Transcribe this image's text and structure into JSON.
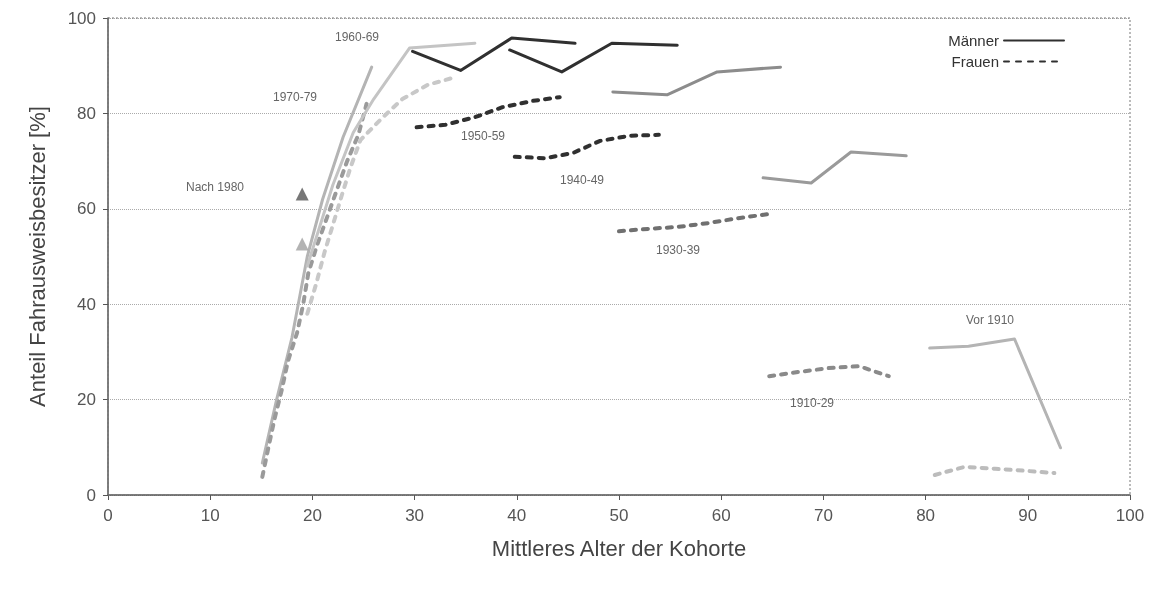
{
  "chart_data": {
    "type": "line",
    "xlabel": "Mittleres Alter der Kohorte",
    "ylabel": "Anteil Fahrausweisbesitzer [%]",
    "xlim": [
      0,
      100
    ],
    "xticks": [
      0,
      10,
      20,
      30,
      40,
      50,
      60,
      70,
      80,
      90,
      100
    ],
    "ylim": [
      0,
      100
    ],
    "yticks": [
      0,
      20,
      40,
      60,
      80,
      100
    ],
    "grid": "y",
    "legend": "top right",
    "marker": "none",
    "series": [
      {
        "name": "Männer",
        "color": "#303030",
        "line_style": "solid",
        "x": [
          29.8,
          34.5,
          39.5,
          45.7
        ],
        "values": [
          93,
          89,
          95.8,
          94.7
        ]
      },
      {
        "name": "Frauen",
        "color": "#303030",
        "line_style": "dotted",
        "x": [
          30.2,
          33,
          35.9,
          38.6,
          41.5,
          44.2
        ],
        "values": [
          77.1,
          77.6,
          79.2,
          81.3,
          82.6,
          83.4
        ]
      },
      {
        "color": "#b4b4b4",
        "line_style": "solid",
        "x": [
          15.1,
          16.5,
          18,
          19.5,
          21,
          23,
          25.8
        ],
        "values": [
          6.7,
          20,
          33,
          50,
          62,
          75,
          89.7
        ]
      },
      {
        "color": "#9a9a9a",
        "line_style": "dotted",
        "x": [
          15.1,
          15.7,
          16.3,
          17,
          17.6,
          18.5,
          19.1,
          19.6,
          20.4,
          21.4,
          22.4,
          23.4,
          24.5,
          25.3
        ],
        "values": [
          3.8,
          10,
          16,
          22,
          28,
          34,
          40,
          46.5,
          52,
          58,
          64,
          70,
          75.5,
          82
        ]
      },
      {
        "color": "#c4c4c4",
        "line_style": "solid",
        "x": [
          19.5,
          22,
          24,
          26,
          29.5,
          35.9
        ],
        "values": [
          48,
          65,
          76,
          83,
          93.7,
          94.7
        ]
      },
      {
        "color": "#c8c8c8",
        "line_style": "dotted",
        "x": [
          19.5,
          20.4,
          21.2,
          22,
          22.9,
          23.7,
          24.7,
          26.8,
          28.8,
          31.3,
          34
        ],
        "values": [
          38,
          44.5,
          51,
          56.6,
          63,
          68.5,
          74.4,
          79,
          83,
          86,
          87.6
        ]
      },
      {
        "color": "#303030",
        "line_style": "solid",
        "x": [
          39.3,
          44.4,
          49.3,
          55.7
        ],
        "values": [
          93.3,
          88.7,
          94.7,
          94.3
        ]
      },
      {
        "color": "#303030",
        "line_style": "dotted",
        "x": [
          39.8,
          42.8,
          45.5,
          48.1,
          51,
          53.9
        ],
        "values": [
          70.9,
          70.6,
          71.7,
          74.2,
          75.3,
          75.5
        ]
      },
      {
        "color": "#8c8c8c",
        "line_style": "solid",
        "x": [
          49.4,
          54.7,
          59.6,
          65.8
        ],
        "values": [
          84.5,
          83.9,
          88.7,
          89.7
        ]
      },
      {
        "color": "#707070",
        "line_style": "dotted",
        "x": [
          50,
          52.9,
          55.8,
          58.7,
          61.6,
          64.6
        ],
        "values": [
          55.3,
          55.8,
          56.2,
          57,
          58,
          58.9
        ]
      },
      {
        "color": "#9a9a9a",
        "line_style": "solid",
        "x": [
          64.1,
          68.8,
          72.7,
          78.1
        ],
        "values": [
          66.5,
          65.4,
          71.9,
          71.1
        ]
      },
      {
        "color": "#8a8a8a",
        "line_style": "dotted",
        "x": [
          64.7,
          67.6,
          70.5,
          73.5,
          76.4
        ],
        "values": [
          24.9,
          25.8,
          26.6,
          27,
          24.9
        ]
      },
      {
        "color": "#b4b4b4",
        "line_style": "solid",
        "x": [
          80.4,
          84.2,
          88.7,
          93.2
        ],
        "values": [
          30.8,
          31.2,
          32.7,
          9.9
        ]
      },
      {
        "color": "#bcbcbc",
        "line_style": "dotted",
        "x": [
          80.9,
          83.8,
          86.8,
          89.6,
          92.6
        ],
        "values": [
          4.2,
          5.9,
          5.5,
          5.1,
          4.6
        ]
      },
      {
        "type": "scatter",
        "marker": "triangle",
        "color": "#555555",
        "x": [
          19
        ],
        "values": [
          63.1
        ]
      },
      {
        "type": "scatter",
        "marker": "triangle",
        "color": "#a0a0a0",
        "x": [
          19
        ],
        "values": [
          52.6
        ]
      }
    ],
    "annotations": [
      "1960-69",
      "1970-79",
      "Nach 1980",
      "1950-59",
      "1940-49",
      "1930-39",
      "1910-29",
      "Vor 1910"
    ]
  }
}
